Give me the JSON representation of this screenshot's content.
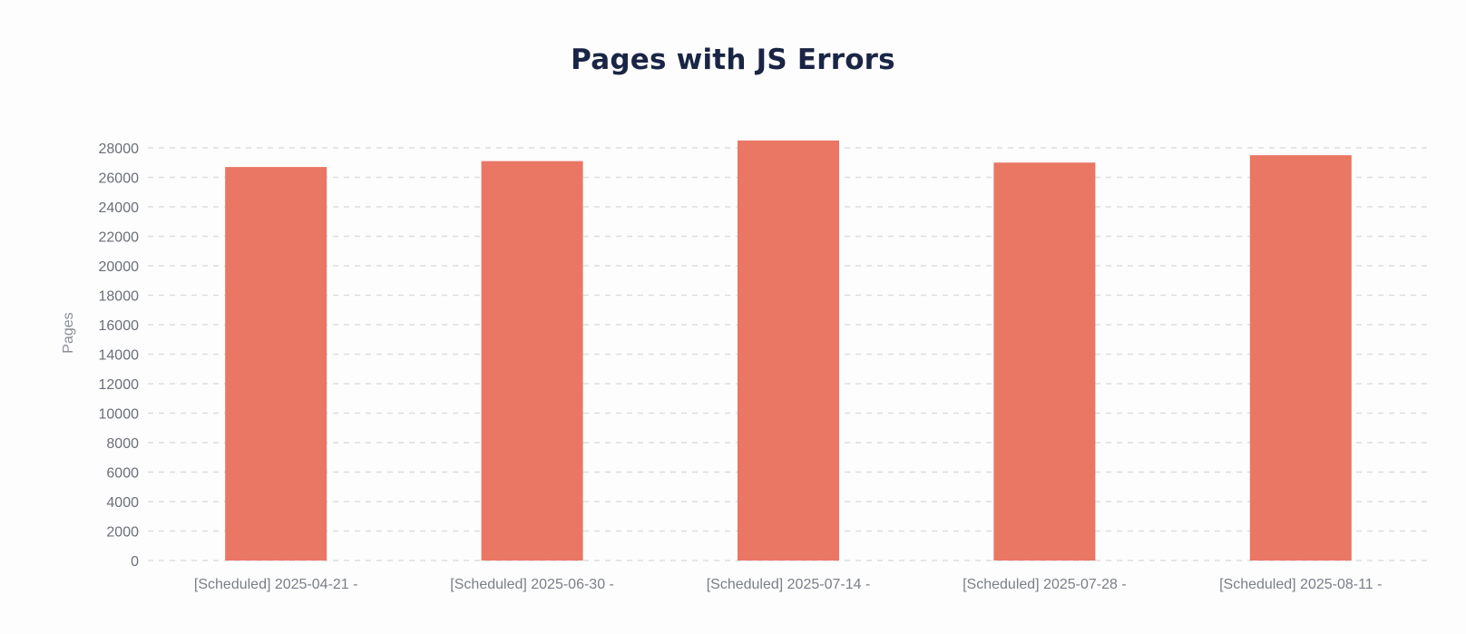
{
  "chart_data": {
    "type": "bar",
    "title": "Pages with JS Errors",
    "xlabel": "",
    "ylabel": "Pages",
    "categories": [
      "[Scheduled] 2025-04-21 -",
      "[Scheduled] 2025-06-30 -",
      "[Scheduled] 2025-07-14 -",
      "[Scheduled] 2025-07-28 -",
      "[Scheduled] 2025-08-11 -"
    ],
    "values": [
      26700,
      27100,
      28500,
      27000,
      27500
    ],
    "ylim": [
      0,
      28000
    ],
    "yticks": [
      0,
      2000,
      4000,
      6000,
      8000,
      10000,
      12000,
      14000,
      16000,
      18000,
      20000,
      22000,
      24000,
      26000,
      28000
    ],
    "grid": true,
    "bar_color": "#ea7664",
    "grid_color": "#dcdde2"
  }
}
